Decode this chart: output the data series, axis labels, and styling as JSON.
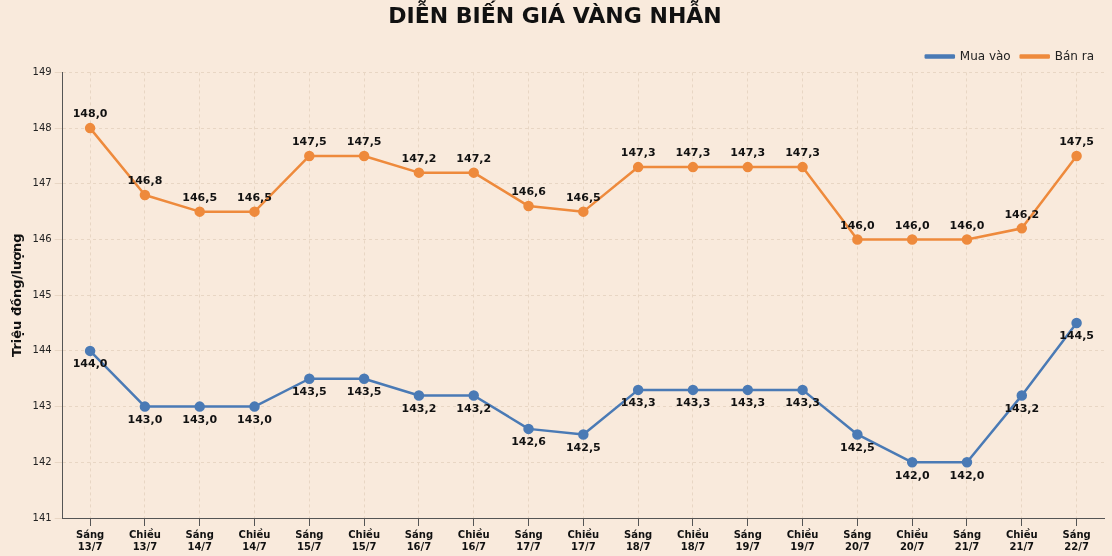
{
  "chart_data": {
    "type": "line",
    "title": "DIỄN BIẾN GIÁ VÀNG NHẪN",
    "ylabel": "Triệu đồng/lượng",
    "categories": [
      "Sáng 13/7",
      "Chiều 13/7",
      "Sáng 14/7",
      "Chiều 14/7",
      "Sáng 15/7",
      "Chiều 15/7",
      "Sáng 16/7",
      "Chiều 16/7",
      "Sáng 17/7",
      "Chiều 17/7",
      "Sáng 18/7",
      "Chiều 18/7",
      "Sáng 19/7",
      "Chiều 19/7",
      "Sáng 20/7",
      "Chiều 20/7",
      "Sáng 21/7",
      "Chiều 21/7",
      "Sáng 22/7"
    ],
    "series": [
      {
        "name": "Mua vào",
        "color": "#4a7ab5",
        "values": [
          144.0,
          143.0,
          143.0,
          143.0,
          143.5,
          143.5,
          143.2,
          143.2,
          142.6,
          142.5,
          143.3,
          143.3,
          143.3,
          143.3,
          142.5,
          142.0,
          142.0,
          143.2,
          144.5
        ],
        "value_labels": [
          "144,0",
          "143,0",
          "143,0",
          "143,0",
          "143,5",
          "143,5",
          "143,2",
          "143,2",
          "142,6",
          "142,5",
          "143,3",
          "143,3",
          "143,3",
          "143,3",
          "142,5",
          "142,0",
          "142,0",
          "143,2",
          "144,5"
        ]
      },
      {
        "name": "Bán ra",
        "color": "#ee8a3c",
        "values": [
          148.0,
          146.8,
          146.5,
          146.5,
          147.5,
          147.5,
          147.2,
          147.2,
          146.6,
          146.5,
          147.3,
          147.3,
          147.3,
          147.3,
          146.0,
          146.0,
          146.0,
          146.2,
          147.5
        ],
        "value_labels": [
          "148,0",
          "146,8",
          "146,5",
          "146,5",
          "147,5",
          "147,5",
          "147,2",
          "147,2",
          "146,6",
          "146,5",
          "147,3",
          "147,3",
          "147,3",
          "147,3",
          "146,0",
          "146,0",
          "146,0",
          "146,2",
          "147,5"
        ]
      }
    ],
    "ylim": [
      141,
      149
    ],
    "yticks": [
      141,
      142,
      143,
      144,
      145,
      146,
      147,
      148,
      149
    ],
    "grid": true,
    "legend": "top right",
    "marker": "circle",
    "line_style": "solid"
  }
}
